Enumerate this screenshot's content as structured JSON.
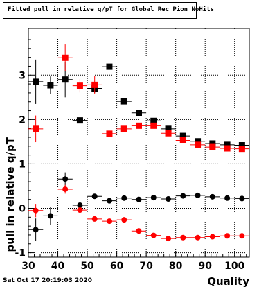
{
  "chart_data": {
    "type": "scatter",
    "title": "Fitted pull in relative q/pT  for Global Rec Pion NoHits",
    "xlabel": "Quality",
    "ylabel": "pull in relative q/pT",
    "xlim": [
      30,
      105
    ],
    "ylim": [
      -1.1,
      4.05
    ],
    "xticks": [
      30,
      40,
      50,
      60,
      70,
      80,
      90,
      100
    ],
    "yticks": [
      -1,
      0,
      1,
      2,
      3
    ],
    "grid": true,
    "series": [
      {
        "marker": "square",
        "color": "#000000",
        "x": [
          32.5,
          37.5,
          42.5,
          47.5,
          52.5,
          57.5,
          62.5,
          67.5,
          72.5,
          77.5,
          82.5,
          87.5,
          92.5,
          97.5,
          102.5
        ],
        "y": [
          2.85,
          2.77,
          2.9,
          1.98,
          2.7,
          3.19,
          2.41,
          2.15,
          1.97,
          1.79,
          1.63,
          1.51,
          1.46,
          1.43,
          1.42
        ],
        "yerr": [
          0.5,
          0.2,
          0.4,
          0.05,
          0.1,
          0.06,
          0.04,
          0.04,
          0.03,
          0.03,
          0.03,
          0.03,
          0.03,
          0.03,
          0.03
        ]
      },
      {
        "marker": "square",
        "color": "#ff0000",
        "x": [
          32.5,
          37.5,
          42.5,
          47.5,
          52.5,
          57.5,
          62.5,
          67.5,
          72.5,
          77.5,
          82.5,
          87.5,
          92.5,
          97.5,
          102.5
        ],
        "y": [
          1.79,
          null,
          3.39,
          2.76,
          2.78,
          1.68,
          1.79,
          1.86,
          1.86,
          1.69,
          1.53,
          1.43,
          1.38,
          1.35,
          1.34
        ],
        "yerr": [
          0.3,
          0,
          0.3,
          0.15,
          0.2,
          0.05,
          0.04,
          0.04,
          0.03,
          0.03,
          0.03,
          0.03,
          0.03,
          0.03,
          0.03
        ]
      },
      {
        "marker": "circle",
        "color": "#000000",
        "x": [
          32.5,
          37.5,
          42.5,
          47.5,
          52.5,
          57.5,
          62.5,
          67.5,
          72.5,
          77.5,
          82.5,
          87.5,
          92.5,
          97.5,
          102.5
        ],
        "y": [
          -0.48,
          -0.17,
          0.66,
          0.07,
          0.27,
          0.17,
          0.23,
          0.2,
          0.24,
          0.21,
          0.28,
          0.29,
          0.26,
          0.23,
          0.22
        ],
        "yerr": [
          0.25,
          0.2,
          0.15,
          0.03,
          0.03,
          0.02,
          0.02,
          0.02,
          0.02,
          0.02,
          0.02,
          0.02,
          0.02,
          0.02,
          0.02
        ]
      },
      {
        "marker": "circle",
        "color": "#ff0000",
        "x": [
          32.5,
          37.5,
          42.5,
          47.5,
          52.5,
          57.5,
          62.5,
          67.5,
          72.5,
          77.5,
          82.5,
          87.5,
          92.5,
          97.5,
          102.5
        ],
        "y": [
          -0.05,
          null,
          0.43,
          -0.04,
          -0.24,
          -0.29,
          -0.26,
          -0.51,
          -0.61,
          -0.68,
          -0.66,
          -0.66,
          -0.64,
          -0.62,
          -0.62
        ],
        "yerr": [
          0.15,
          0,
          0.1,
          0.05,
          0.03,
          0.03,
          0.03,
          0.02,
          0.02,
          0.02,
          0.02,
          0.02,
          0.02,
          0.02,
          0.02
        ]
      }
    ]
  },
  "date_stamp": "Sat Oct 17 20:19:03 2020"
}
